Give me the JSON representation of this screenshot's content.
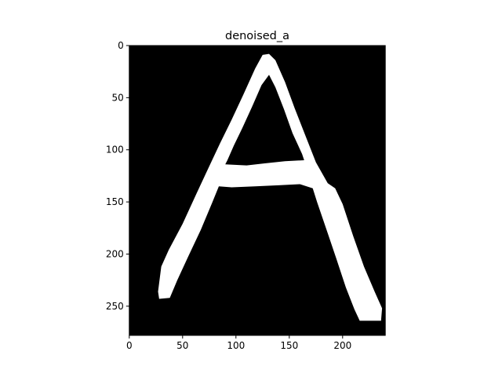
{
  "figure": {
    "title": "denoised_a"
  },
  "image": {
    "width": 240,
    "height": 278,
    "background": "#000000",
    "foreground": "#ffffff",
    "content": "white handwritten capital letter A on black background"
  },
  "axes": {
    "x_ticks": [
      0,
      50,
      100,
      150,
      200
    ],
    "y_ticks": [
      0,
      50,
      100,
      150,
      200,
      250
    ]
  },
  "glyph_polygons": [
    [
      [
        27,
        236
      ],
      [
        30,
        212
      ],
      [
        37,
        196
      ],
      [
        50,
        171
      ],
      [
        63,
        142
      ],
      [
        74,
        118
      ],
      [
        85,
        94
      ],
      [
        96,
        71
      ],
      [
        107,
        47
      ],
      [
        118,
        22
      ],
      [
        125,
        9
      ],
      [
        131,
        8
      ],
      [
        137,
        14
      ],
      [
        146,
        35
      ],
      [
        155,
        60
      ],
      [
        165,
        86
      ],
      [
        175,
        112
      ],
      [
        186,
        132
      ],
      [
        193,
        137
      ],
      [
        200,
        152
      ],
      [
        210,
        183
      ],
      [
        220,
        212
      ],
      [
        230,
        236
      ],
      [
        237,
        252
      ],
      [
        236,
        264
      ],
      [
        216,
        264
      ],
      [
        211,
        253
      ],
      [
        203,
        232
      ],
      [
        194,
        204
      ],
      [
        186,
        180
      ],
      [
        176,
        150
      ],
      [
        172,
        137
      ],
      [
        160,
        133
      ],
      [
        140,
        134
      ],
      [
        118,
        135
      ],
      [
        96,
        136
      ],
      [
        84,
        135
      ],
      [
        78,
        150
      ],
      [
        67,
        177
      ],
      [
        55,
        203
      ],
      [
        45,
        225
      ],
      [
        38,
        242
      ],
      [
        28,
        243
      ]
    ],
    [
      [
        92,
        110
      ],
      [
        98,
        96
      ],
      [
        106,
        79
      ],
      [
        115,
        59
      ],
      [
        124,
        38
      ],
      [
        131,
        28
      ],
      [
        137,
        40
      ],
      [
        145,
        61
      ],
      [
        153,
        84
      ],
      [
        162,
        104
      ],
      [
        164,
        110
      ],
      [
        146,
        111
      ],
      [
        127,
        113
      ],
      [
        110,
        115
      ],
      [
        90,
        114
      ]
    ]
  ]
}
